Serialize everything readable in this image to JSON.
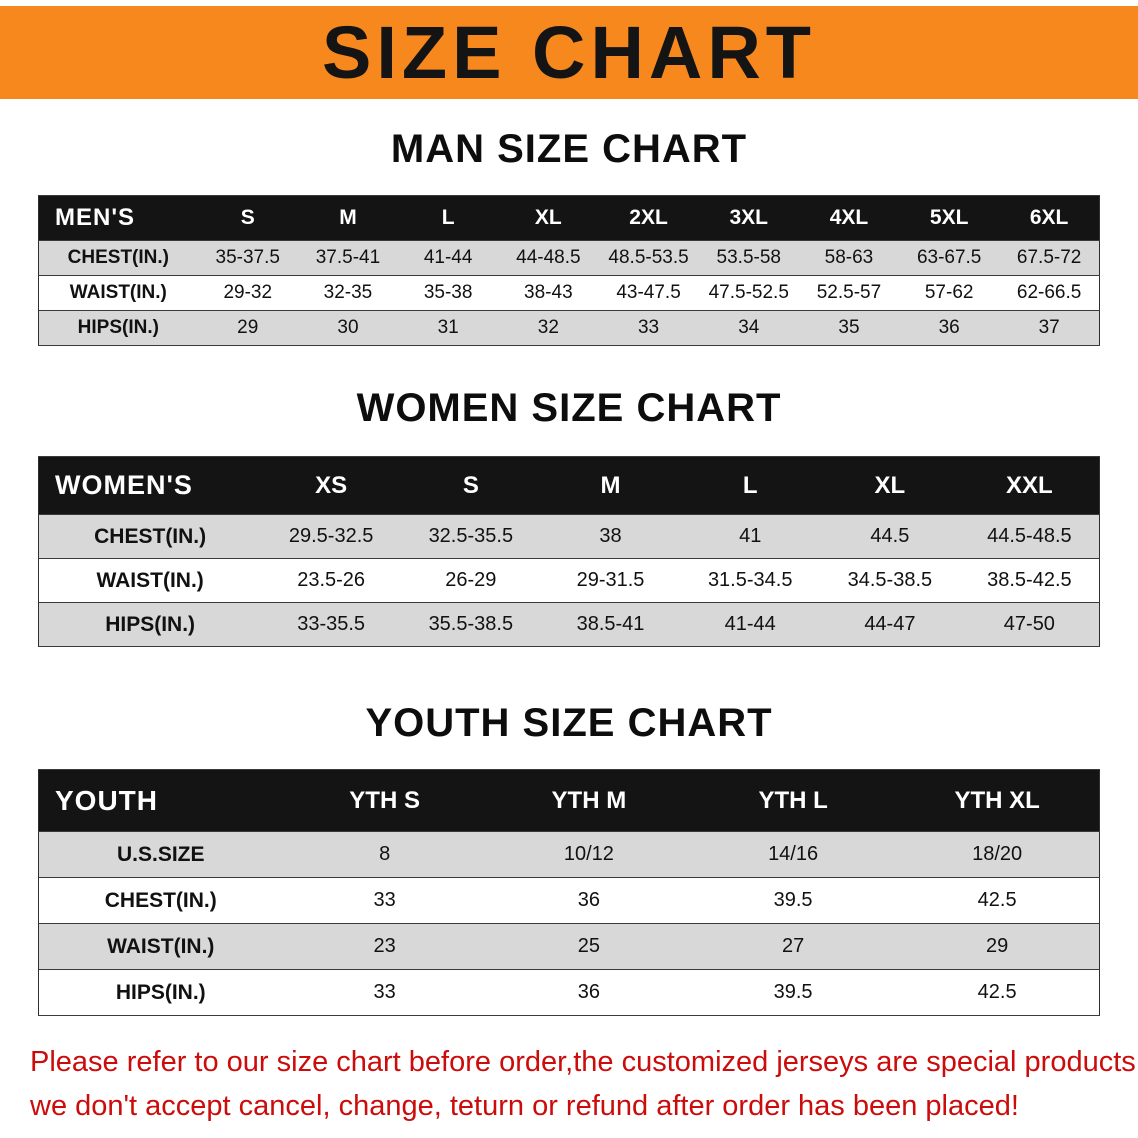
{
  "colors": {
    "banner-bg": "#F6881E",
    "header-row-bg": "#141414",
    "stripe-bg": "#D8D8D8",
    "note-color": "#CC0B0B"
  },
  "banner": {
    "title": "SIZE CHART"
  },
  "sections": {
    "men": {
      "heading": "MAN SIZE CHART"
    },
    "women": {
      "heading": "WOMEN SIZE CHART"
    },
    "youth": {
      "heading": "YOUTH SIZE CHART"
    }
  },
  "tables": {
    "men": {
      "header_label": "MEN'S",
      "columns": [
        "S",
        "M",
        "L",
        "XL",
        "2XL",
        "3XL",
        "4XL",
        "5XL",
        "6XL"
      ],
      "rows": [
        {
          "label": "CHEST(IN.)",
          "values": [
            "35-37.5",
            "37.5-41",
            "41-44",
            "44-48.5",
            "48.5-53.5",
            "53.5-58",
            "58-63",
            "63-67.5",
            "67.5-72"
          ]
        },
        {
          "label": "WAIST(IN.)",
          "values": [
            "29-32",
            "32-35",
            "35-38",
            "38-43",
            "43-47.5",
            "47.5-52.5",
            "52.5-57",
            "57-62",
            "62-66.5"
          ]
        },
        {
          "label": "HIPS(IN.)",
          "values": [
            "29",
            "30",
            "31",
            "32",
            "33",
            "34",
            "35",
            "36",
            "37"
          ]
        }
      ]
    },
    "women": {
      "header_label": "WOMEN'S",
      "columns": [
        "XS",
        "S",
        "M",
        "L",
        "XL",
        "XXL"
      ],
      "rows": [
        {
          "label": "CHEST(IN.)",
          "values": [
            "29.5-32.5",
            "32.5-35.5",
            "38",
            "41",
            "44.5",
            "44.5-48.5"
          ]
        },
        {
          "label": "WAIST(IN.)",
          "values": [
            "23.5-26",
            "26-29",
            "29-31.5",
            "31.5-34.5",
            "34.5-38.5",
            "38.5-42.5"
          ]
        },
        {
          "label": "HIPS(IN.)",
          "values": [
            "33-35.5",
            "35.5-38.5",
            "38.5-41",
            "41-44",
            "44-47",
            "47-50"
          ]
        }
      ]
    },
    "youth": {
      "header_label": "YOUTH",
      "columns": [
        "YTH S",
        "YTH M",
        "YTH L",
        "YTH XL"
      ],
      "rows": [
        {
          "label": "U.S.SIZE",
          "values": [
            "8",
            "10/12",
            "14/16",
            "18/20"
          ]
        },
        {
          "label": "CHEST(IN.)",
          "values": [
            "33",
            "36",
            "39.5",
            "42.5"
          ]
        },
        {
          "label": "WAIST(IN.)",
          "values": [
            "23",
            "25",
            "27",
            "29"
          ]
        },
        {
          "label": "HIPS(IN.)",
          "values": [
            "33",
            "36",
            "39.5",
            "42.5"
          ]
        }
      ]
    }
  },
  "note": {
    "line1": "Please refer to our size chart before order,the customized jerseys are special products,",
    "line2": "we don't accept cancel, change, teturn or refund after order has been placed!"
  }
}
